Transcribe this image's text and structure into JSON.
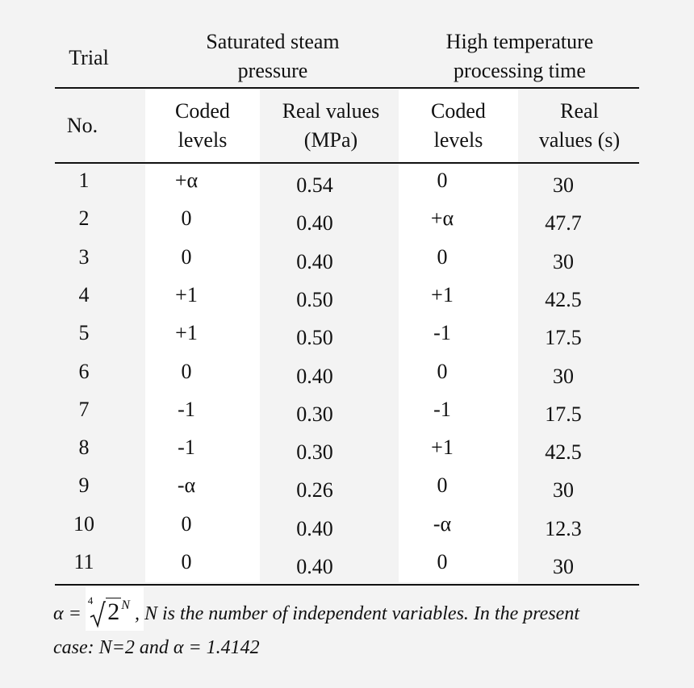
{
  "table": {
    "group_headers": {
      "pressure": "Saturated steam\npressure",
      "time": "High temperature\nprocessing time"
    },
    "col_headers": {
      "trial_top": "Trial",
      "trial_bottom": "No.",
      "coded_1": "Coded\nlevels",
      "real_1": "Real values\n(MPa)",
      "coded_2": "Coded\nlevels",
      "real_2": "Real\nvalues (s)"
    },
    "rows": [
      {
        "no": "1",
        "c1": "+α",
        "r1": "0.54",
        "c2": "0",
        "r2": "30"
      },
      {
        "no": "2",
        "c1": "0",
        "r1": "0.40",
        "c2": "+α",
        "r2": "47.7"
      },
      {
        "no": "3",
        "c1": "0",
        "r1": "0.40",
        "c2": "0",
        "r2": "30"
      },
      {
        "no": "4",
        "c1": "+1",
        "r1": "0.50",
        "c2": "+1",
        "r2": "42.5"
      },
      {
        "no": "5",
        "c1": "+1",
        "r1": "0.50",
        "c2": "-1",
        "r2": "17.5"
      },
      {
        "no": "6",
        "c1": "0",
        "r1": "0.40",
        "c2": "0",
        "r2": "30"
      },
      {
        "no": "7",
        "c1": "-1",
        "r1": "0.30",
        "c2": "-1",
        "r2": "17.5"
      },
      {
        "no": "8",
        "c1": "-1",
        "r1": "0.30",
        "c2": "+1",
        "r2": "42.5"
      },
      {
        "no": "9",
        "c1": "-α",
        "r1": "0.26",
        "c2": "0",
        "r2": "30"
      },
      {
        "no": "10",
        "c1": "0",
        "r1": "0.40",
        "c2": "-α",
        "r2": "12.3"
      },
      {
        "no": "11",
        "c1": "0",
        "r1": "0.40",
        "c2": "0",
        "r2": "30"
      }
    ]
  },
  "footnote": {
    "alpha_eq": "α =",
    "root_index": "4",
    "root_base": "2",
    "root_exp": "N",
    "line1_rest": ", N is the number of independent variables. In the present",
    "line2": "case: N=2 and α = 1.4142"
  }
}
